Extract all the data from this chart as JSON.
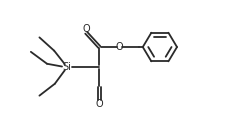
{
  "bg_color": "#ffffff",
  "line_color": "#2a2a2a",
  "line_width": 1.3,
  "figsize": [
    2.39,
    1.39
  ],
  "dpi": 100,
  "si_label": "Si",
  "o_ester_label": "O",
  "o_upper_label": "O",
  "o_lower_label": "O"
}
